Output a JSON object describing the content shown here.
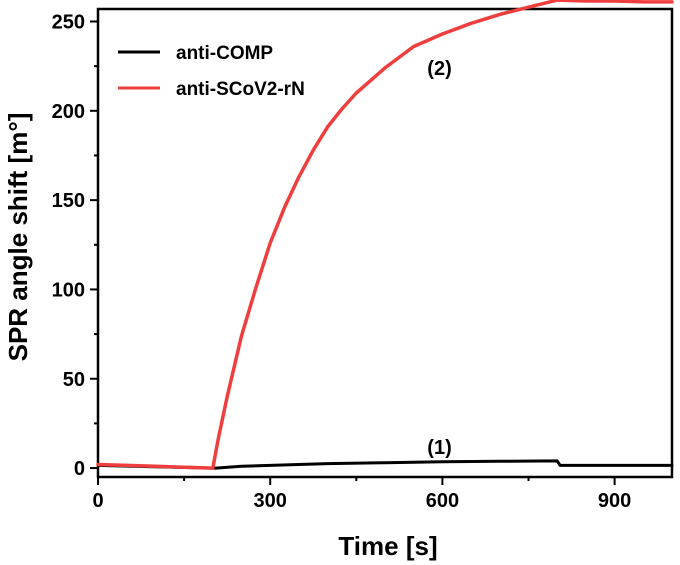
{
  "chart_data": {
    "type": "line",
    "xlabel": "Time [s]",
    "ylabel": "SPR angle shift [m°]",
    "xlim": [
      0,
      1000
    ],
    "ylim": [
      -5,
      257
    ],
    "x_ticks": [
      0,
      300,
      600,
      900
    ],
    "y_ticks": [
      0,
      50,
      100,
      150,
      200,
      250
    ],
    "grid": false,
    "legend_position": "top-left",
    "series": [
      {
        "name": "anti-COMP",
        "color": "#000000",
        "x": [
          0,
          200,
          205,
          250,
          300,
          400,
          500,
          600,
          700,
          800,
          805,
          900,
          1000
        ],
        "y": [
          1.5,
          0,
          0,
          1,
          1.5,
          2.5,
          3,
          3.5,
          3.8,
          4,
          1.5,
          1.5,
          1.5
        ]
      },
      {
        "name": "anti-SCoV2-rN",
        "color": "#ef3e3e",
        "x": [
          0,
          50,
          100,
          150,
          200,
          210,
          225,
          250,
          275,
          300,
          325,
          350,
          375,
          400,
          425,
          450,
          500,
          550,
          600,
          650,
          700,
          750,
          800,
          850,
          900,
          950,
          1000
        ],
        "y": [
          2,
          1.5,
          1,
          0.5,
          0,
          17,
          40,
          74,
          101,
          126,
          146,
          163,
          178,
          191,
          201,
          210,
          224,
          236,
          243,
          249,
          254,
          258,
          262,
          261.5,
          261.5,
          261,
          261
        ]
      }
    ],
    "annotations": [
      {
        "text": "(1)",
        "x": 595,
        "y": 8
      },
      {
        "text": "(2)",
        "x": 595,
        "y": 220
      }
    ]
  }
}
